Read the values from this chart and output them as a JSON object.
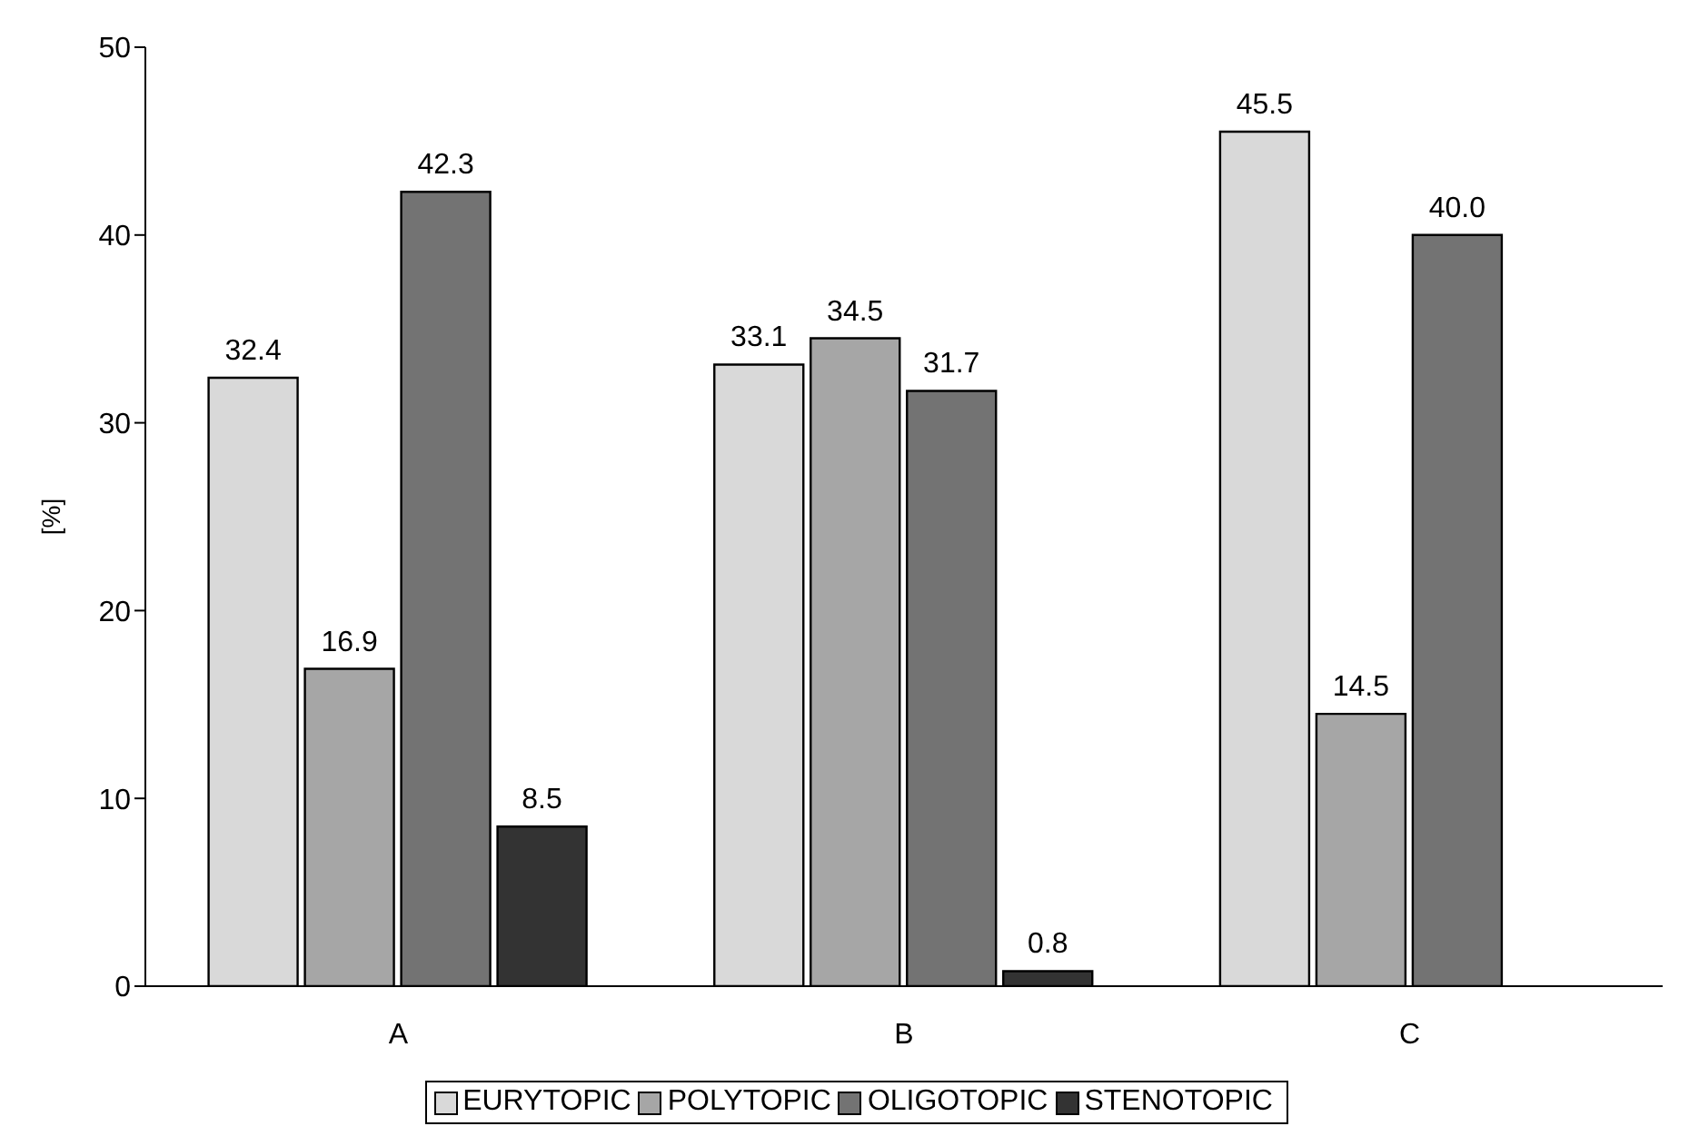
{
  "chart_data": {
    "type": "bar",
    "ylabel": "[%]",
    "categories": [
      "A",
      "B",
      "C"
    ],
    "series": [
      {
        "name": "EURYTOPIC",
        "color": "#d9d9d9",
        "values": [
          32.4,
          33.1,
          45.5
        ],
        "value_labels": [
          "32.4",
          "33.1",
          "45.5"
        ]
      },
      {
        "name": "POLYTOPIC",
        "color": "#a6a6a6",
        "values": [
          16.9,
          34.5,
          14.5
        ],
        "value_labels": [
          "16.9",
          "34.5",
          "14.5"
        ]
      },
      {
        "name": "OLIGOTOPIC",
        "color": "#737373",
        "values": [
          42.3,
          31.7,
          40.0
        ],
        "value_labels": [
          "42.3",
          "31.7",
          "40.0"
        ]
      },
      {
        "name": "STENOTOPIC",
        "color": "#333333",
        "values": [
          8.5,
          0.8,
          null
        ],
        "value_labels": [
          "8.5",
          "0.8",
          null
        ]
      }
    ],
    "ylim": [
      0,
      50
    ],
    "yticks": [
      0,
      10,
      20,
      30,
      40,
      50
    ],
    "grid": false,
    "legend": "bottom"
  }
}
